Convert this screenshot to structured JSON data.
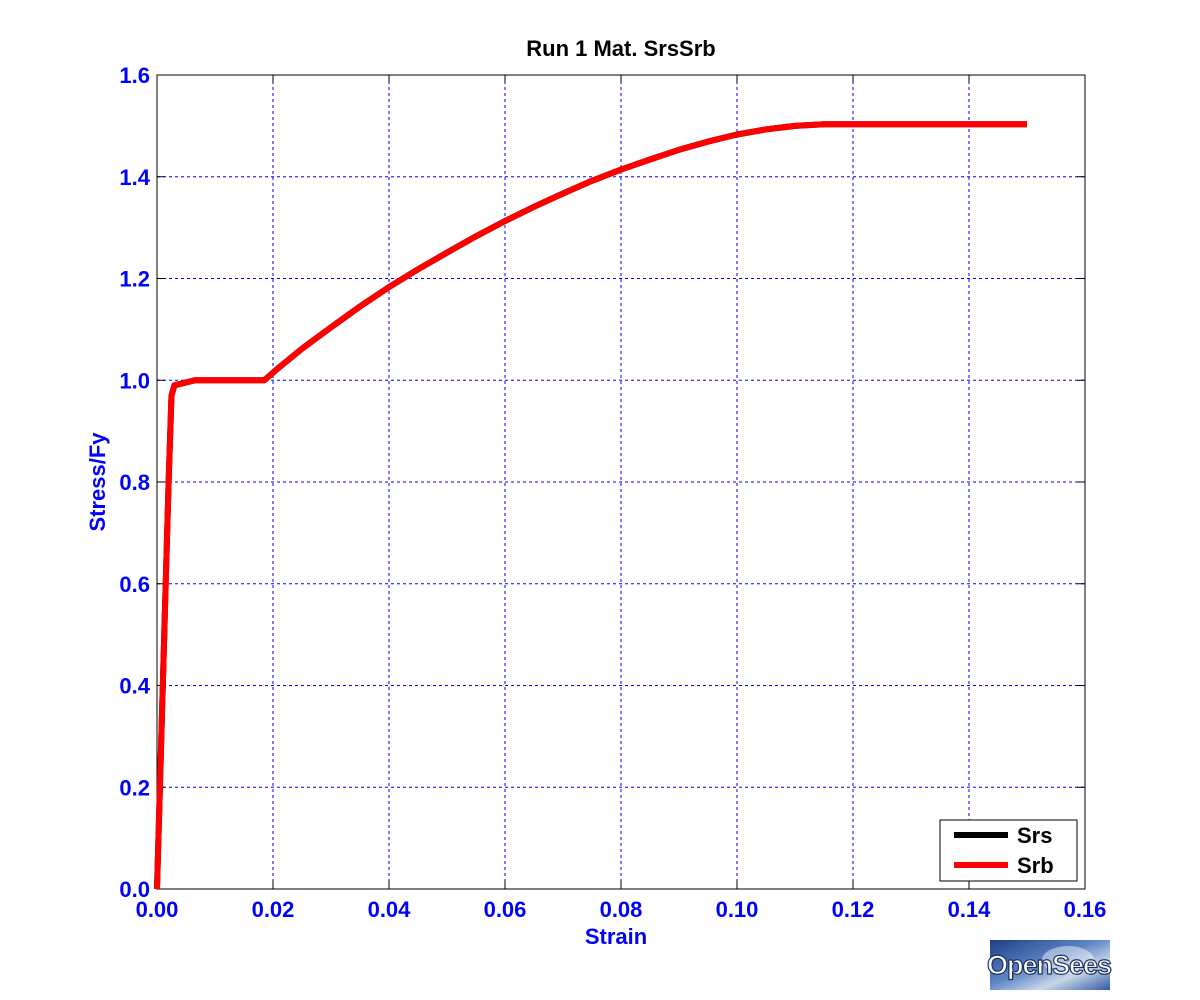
{
  "chart_data": {
    "type": "line",
    "title": "Run 1   Mat. SrsSrb",
    "xlabel": "Strain",
    "ylabel": "Stress/Fy",
    "xlim": [
      0,
      0.16
    ],
    "ylim": [
      0,
      1.6
    ],
    "xticks": [
      0,
      0.02,
      0.04,
      0.06,
      0.08,
      0.1,
      0.12,
      0.14,
      0.16
    ],
    "xtick_labels": [
      "0.00",
      "0.02",
      "0.04",
      "0.06",
      "0.08",
      "0.10",
      "0.12",
      "0.14",
      "0.16"
    ],
    "yticks": [
      0,
      0.2,
      0.4,
      0.6,
      0.8,
      1.0,
      1.2,
      1.4,
      1.6
    ],
    "ytick_labels": [
      "0.0",
      "0.2",
      "0.4",
      "0.6",
      "0.8",
      "1.0",
      "1.2",
      "1.4",
      "1.6"
    ],
    "grid": true,
    "legend_position": "bottom-right",
    "series": [
      {
        "name": "Srs",
        "color": "#000000",
        "x": [
          0,
          0.0005,
          0.001,
          0.0015,
          0.002,
          0.0025,
          0.003,
          0.0065,
          0.0125,
          0.0185,
          0.0205,
          0.025,
          0.03,
          0.035,
          0.04,
          0.045,
          0.05,
          0.055,
          0.06,
          0.065,
          0.07,
          0.075,
          0.08,
          0.085,
          0.09,
          0.095,
          0.1,
          0.105,
          0.11,
          0.115,
          0.12,
          0.125,
          0.13,
          0.135,
          0.14,
          0.145,
          0.15
        ],
        "y": [
          0,
          0.2,
          0.4,
          0.6,
          0.8,
          0.97,
          0.99,
          1.0,
          1.0,
          1.0,
          1.02,
          1.062,
          1.104,
          1.145,
          1.183,
          1.218,
          1.251,
          1.283,
          1.313,
          1.341,
          1.367,
          1.392,
          1.414,
          1.434,
          1.453,
          1.469,
          1.483,
          1.493,
          1.5,
          1.503,
          1.503,
          1.503,
          1.503,
          1.503,
          1.503,
          1.503,
          1.503
        ]
      },
      {
        "name": "Srb",
        "color": "#ff0000",
        "x": [
          0,
          0.0005,
          0.001,
          0.0015,
          0.002,
          0.0025,
          0.003,
          0.0065,
          0.0125,
          0.0185,
          0.0205,
          0.025,
          0.03,
          0.035,
          0.04,
          0.045,
          0.05,
          0.055,
          0.06,
          0.065,
          0.07,
          0.075,
          0.08,
          0.085,
          0.09,
          0.095,
          0.1,
          0.105,
          0.11,
          0.115,
          0.12,
          0.125,
          0.13,
          0.135,
          0.14,
          0.145,
          0.15
        ],
        "y": [
          0,
          0.2,
          0.4,
          0.6,
          0.8,
          0.97,
          0.99,
          1.0,
          1.0,
          1.0,
          1.02,
          1.062,
          1.104,
          1.145,
          1.183,
          1.218,
          1.251,
          1.283,
          1.313,
          1.341,
          1.367,
          1.392,
          1.414,
          1.434,
          1.453,
          1.469,
          1.483,
          1.493,
          1.5,
          1.503,
          1.503,
          1.503,
          1.503,
          1.503,
          1.503,
          1.503,
          1.503
        ]
      }
    ]
  },
  "logo": {
    "text": "OpenSees"
  }
}
